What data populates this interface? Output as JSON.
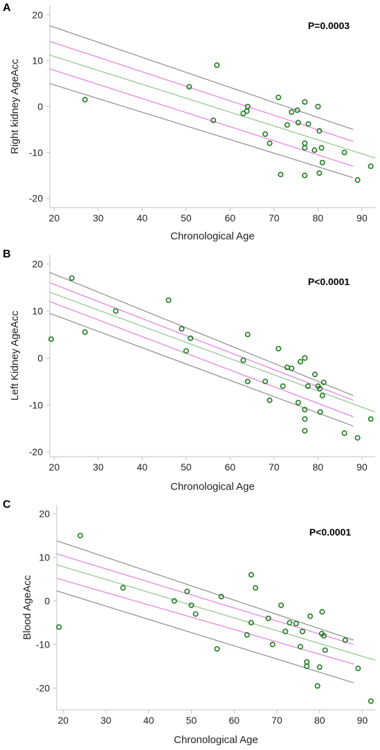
{
  "chart_data": [
    {
      "type": "scatter",
      "panel": "A",
      "annotation": "P=0.0003",
      "xlabel": "Chronological Age",
      "ylabel": "Right kidney  AgeAcc",
      "xlim": [
        19,
        93
      ],
      "ylim": [
        -22,
        22
      ],
      "xticks": [
        20,
        30,
        40,
        50,
        60,
        70,
        80,
        90
      ],
      "yticks": [
        -20,
        -10,
        0,
        10,
        20
      ],
      "points": [
        [
          27,
          1.5
        ],
        [
          50.7,
          4.3
        ],
        [
          56.2,
          -3
        ],
        [
          57,
          9
        ],
        [
          63,
          -1.5
        ],
        [
          63.8,
          -1
        ],
        [
          64,
          0
        ],
        [
          68,
          -6
        ],
        [
          69,
          -8
        ],
        [
          71,
          2
        ],
        [
          71.5,
          -14.8
        ],
        [
          73,
          -4
        ],
        [
          74,
          -1.2
        ],
        [
          75.3,
          -0.8
        ],
        [
          75.5,
          -3.5
        ],
        [
          77,
          1
        ],
        [
          77,
          -8
        ],
        [
          77,
          -9
        ],
        [
          77,
          -15
        ],
        [
          77.8,
          -3.8
        ],
        [
          79.2,
          -9.5
        ],
        [
          80,
          0
        ],
        [
          80.3,
          -14.5
        ],
        [
          80.3,
          -5.3
        ],
        [
          80.8,
          -9
        ],
        [
          81,
          -12.2
        ],
        [
          86,
          -10
        ],
        [
          89,
          -16
        ],
        [
          92,
          -13
        ]
      ],
      "fit": {
        "x": [
          19,
          93
        ],
        "y": [
          11.2,
          -11.2
        ]
      },
      "ci_inner": {
        "x": [
          19,
          88
        ],
        "upper": [
          14.2,
          -7.6
        ],
        "lower": [
          8.2,
          -13.0
        ]
      },
      "pred_band": {
        "x": [
          19,
          88
        ],
        "upper": [
          17.6,
          -5.0
        ],
        "lower": [
          5.0,
          -15.5
        ]
      }
    },
    {
      "type": "scatter",
      "panel": "B",
      "annotation": "P<0.0001",
      "xlabel": "Chronological Age",
      "ylabel": "Left Kidney AgeAcc",
      "xlim": [
        19,
        93
      ],
      "ylim": [
        -21,
        22
      ],
      "xticks": [
        20,
        30,
        40,
        50,
        60,
        70,
        80,
        90
      ],
      "yticks": [
        -20,
        -10,
        0,
        10,
        20
      ],
      "points": [
        [
          19.3,
          4
        ],
        [
          24,
          17
        ],
        [
          27,
          5.5
        ],
        [
          34,
          10
        ],
        [
          46,
          12.3
        ],
        [
          49,
          6.2
        ],
        [
          50,
          1.5
        ],
        [
          51,
          4.2
        ],
        [
          63,
          -0.5
        ],
        [
          64,
          5
        ],
        [
          64,
          -5
        ],
        [
          68,
          -5
        ],
        [
          69,
          -9
        ],
        [
          71,
          2
        ],
        [
          72,
          -6
        ],
        [
          73,
          -2
        ],
        [
          74,
          -2.2
        ],
        [
          75.5,
          -9.5
        ],
        [
          76,
          -0.8
        ],
        [
          77,
          0
        ],
        [
          77,
          -11
        ],
        [
          77,
          -13
        ],
        [
          77,
          -15.5
        ],
        [
          77.7,
          -6
        ],
        [
          79.3,
          -3.5
        ],
        [
          80,
          -6
        ],
        [
          80.4,
          -6.5
        ],
        [
          80.5,
          -11.5
        ],
        [
          81,
          -8
        ],
        [
          81.3,
          -5.2
        ],
        [
          86,
          -16
        ],
        [
          89,
          -17
        ],
        [
          92,
          -13
        ]
      ],
      "fit": {
        "x": [
          19,
          93
        ],
        "y": [
          14.0,
          -11.5
        ]
      },
      "ci_inner": {
        "x": [
          19,
          88
        ],
        "upper": [
          16.0,
          -9.0
        ],
        "lower": [
          12.0,
          -12.5
        ]
      },
      "pred_band": {
        "x": [
          19,
          88
        ],
        "upper": [
          18.2,
          -8.0
        ],
        "lower": [
          9.5,
          -14.5
        ]
      }
    },
    {
      "type": "scatter",
      "panel": "C",
      "annotation": "P<0.0001",
      "xlabel": "Chronological Age",
      "ylabel": "Blood AgeAcc",
      "xlim": [
        18.5,
        93
      ],
      "ylim": [
        -25,
        22
      ],
      "xticks": [
        20,
        30,
        40,
        50,
        60,
        70,
        80,
        90
      ],
      "yticks": [
        -20,
        -10,
        0,
        10,
        20
      ],
      "points": [
        [
          19,
          -6
        ],
        [
          24,
          15
        ],
        [
          34,
          3
        ],
        [
          46,
          0
        ],
        [
          49,
          2.2
        ],
        [
          50,
          -1
        ],
        [
          51,
          -3
        ],
        [
          56,
          -11
        ],
        [
          57,
          1
        ],
        [
          63,
          -7.8
        ],
        [
          64,
          6
        ],
        [
          64,
          -5
        ],
        [
          65,
          3
        ],
        [
          68,
          -4
        ],
        [
          69,
          -10
        ],
        [
          71,
          -1
        ],
        [
          72,
          -7
        ],
        [
          73,
          -5
        ],
        [
          74.5,
          -5.2
        ],
        [
          75.5,
          -10.5
        ],
        [
          76,
          -7
        ],
        [
          77,
          -14
        ],
        [
          77,
          -15
        ],
        [
          77.8,
          -3.5
        ],
        [
          79.5,
          -19.5
        ],
        [
          80,
          -15.2
        ],
        [
          80.5,
          -7.5
        ],
        [
          80.6,
          -2.5
        ],
        [
          81,
          -8
        ],
        [
          81.3,
          -11.3
        ],
        [
          86,
          -9
        ],
        [
          89,
          -15.5
        ],
        [
          92,
          -23
        ]
      ],
      "fit": {
        "x": [
          18.5,
          93
        ],
        "y": [
          8.3,
          -13.6
        ]
      },
      "ci_inner": {
        "x": [
          18.5,
          88
        ],
        "upper": [
          10.8,
          -10.0
        ],
        "lower": [
          5.2,
          -14.5
        ]
      },
      "pred_band": {
        "x": [
          18.5,
          88
        ],
        "upper": [
          13.8,
          -9.0
        ],
        "lower": [
          2.3,
          -18.8
        ]
      }
    }
  ],
  "colors": {
    "points": "#1a7a1a",
    "fit": "#8dc28d",
    "ci_inner": "#e57be0",
    "pred_band": "#8a8a8a",
    "axis": "#c0c0c0"
  }
}
